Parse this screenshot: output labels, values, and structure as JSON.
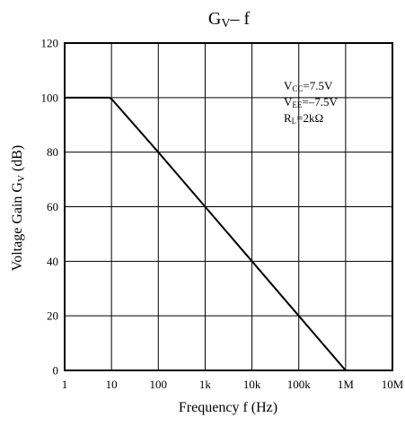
{
  "chart_data": {
    "type": "line",
    "title": "Gv– f",
    "title_parts": {
      "main": "G",
      "sub": "V",
      "rest": "– f"
    },
    "xlabel": "Frequency  f (Hz)",
    "ylabel": "Voltage Gain  Gv (dB)",
    "ylabel_parts": {
      "main": "Voltage Gain  G",
      "sub": "V",
      "rest": " (dB)"
    },
    "x_scale": "log",
    "xlim": [
      1,
      10000000
    ],
    "ylim": [
      0,
      120
    ],
    "x_ticks": [
      1,
      10,
      100,
      1000,
      10000,
      100000,
      1000000,
      10000000
    ],
    "x_tick_labels": [
      "1",
      "10",
      "100",
      "1k",
      "10k",
      "100k",
      "1M",
      "10M"
    ],
    "y_ticks": [
      0,
      20,
      40,
      60,
      80,
      100,
      120
    ],
    "y_tick_labels": [
      "0",
      "20",
      "40",
      "60",
      "80",
      "100",
      "120"
    ],
    "grid": true,
    "series": [
      {
        "color": "#000000",
        "x": [
          1,
          9,
          10,
          12,
          100,
          1000,
          10000,
          100000,
          1000000
        ],
        "y": [
          100,
          100,
          99.5,
          98,
          80,
          60,
          40,
          20,
          0
        ]
      }
    ],
    "annotations": [
      {
        "main": "V",
        "sub": "CC",
        "rest": "=7.5V"
      },
      {
        "main": "V",
        "sub": "EE",
        "rest": "=–7.5V"
      },
      {
        "main": "R",
        "sub": "L",
        "rest": "=2kΩ"
      }
    ]
  }
}
